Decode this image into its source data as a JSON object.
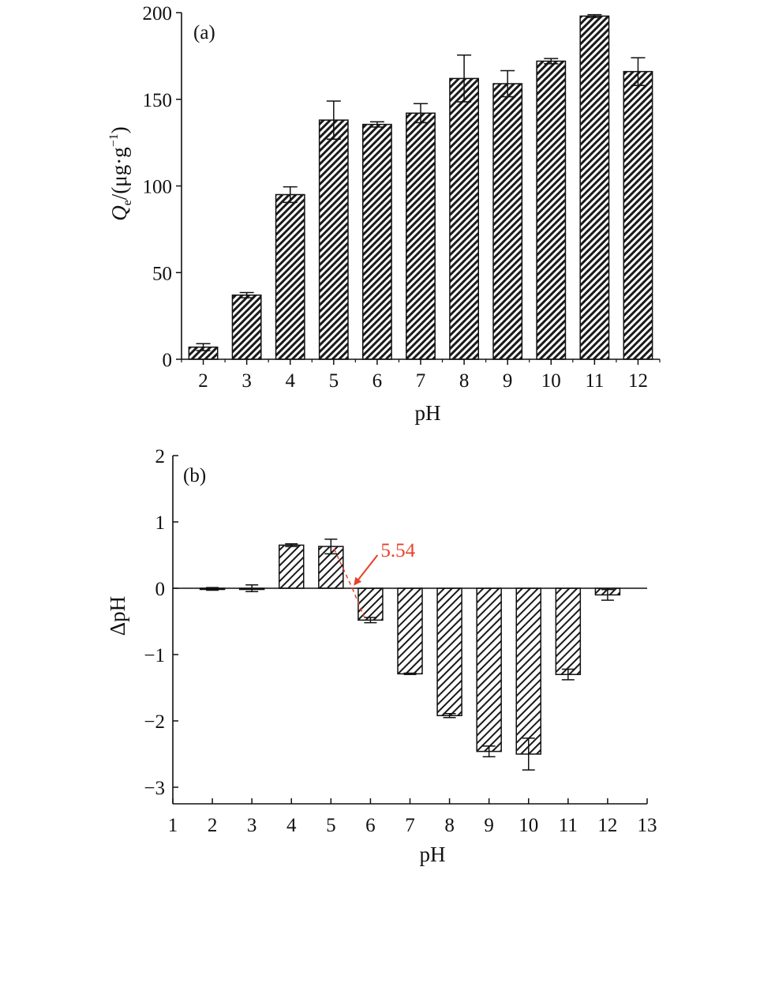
{
  "chart_data": [
    {
      "panel_label": "(a)",
      "type": "bar",
      "categories": [
        "2",
        "3",
        "4",
        "5",
        "6",
        "7",
        "8",
        "9",
        "10",
        "11",
        "12"
      ],
      "values": [
        7,
        37,
        95,
        138,
        135.5,
        142,
        162,
        159,
        172,
        198,
        166
      ],
      "errors": [
        2,
        1.5,
        4.5,
        11,
        1.5,
        5.5,
        13.5,
        7.5,
        1.5,
        0.8,
        8
      ],
      "xlabel": "pH",
      "ylabel": {
        "symbol": "Q",
        "subscript": "e",
        "unit": "/(μg·g",
        "exponent": "−1",
        "close": ")"
      },
      "ylim": [
        0,
        200
      ],
      "yticks": [
        0,
        50,
        100,
        150,
        200
      ],
      "pattern": "dense diagonal hatch",
      "grid": false
    },
    {
      "panel_label": "(b)",
      "type": "bar",
      "categories": [
        "2",
        "3",
        "4",
        "5",
        "6",
        "7",
        "8",
        "9",
        "10",
        "11",
        "12"
      ],
      "x": [
        2,
        3,
        4,
        5,
        6,
        7,
        8,
        9,
        10,
        11,
        12
      ],
      "values": [
        -0.01,
        0,
        0.65,
        0.63,
        -0.48,
        -1.29,
        -1.92,
        -2.46,
        -2.5,
        -1.3,
        -0.1
      ],
      "errors": [
        0.02,
        0.05,
        0.02,
        0.11,
        0.04,
        0.01,
        0.03,
        0.08,
        0.24,
        0.08,
        0.08
      ],
      "xlabel": "pH",
      "ylabel": "ΔpH",
      "xlim": [
        1,
        13
      ],
      "xticks": [
        "1",
        "2",
        "3",
        "4",
        "5",
        "6",
        "7",
        "8",
        "9",
        "10",
        "11",
        "12",
        "13"
      ],
      "ylim": [
        -3.25,
        2
      ],
      "yticks": [
        "−3",
        "−2",
        "−1",
        "0",
        "1",
        "2"
      ],
      "annotation": {
        "text": "5.54",
        "x": 5.54,
        "y": 0,
        "color": "#e8402a"
      },
      "pattern": "diagonal hatch",
      "grid": false
    }
  ]
}
